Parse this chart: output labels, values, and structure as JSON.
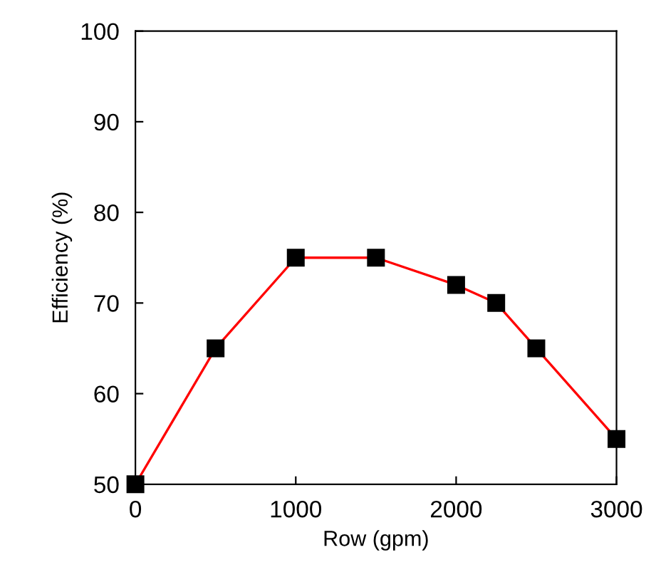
{
  "chart_data": {
    "type": "line",
    "xlabel": "Row (gpm)",
    "ylabel": "Efficiency (%)",
    "x": [
      0,
      500,
      1000,
      1500,
      2000,
      2250,
      2500,
      3000
    ],
    "series": [
      {
        "color": "#ff0000",
        "values": [
          50,
          65,
          75,
          75,
          72,
          70,
          65,
          55
        ]
      }
    ],
    "xlim": [
      0,
      3000
    ],
    "xticks": [
      0,
      1000,
      2000,
      3000
    ],
    "ylim": [
      50,
      100
    ],
    "yticks": [
      50,
      60,
      70,
      80,
      90,
      100
    ],
    "marker": "square",
    "line_style": "solid",
    "grid": false,
    "legend": false
  }
}
